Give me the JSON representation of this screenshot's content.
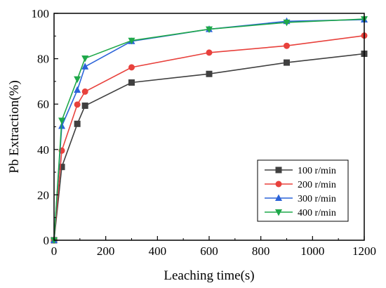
{
  "chart_data": {
    "type": "line",
    "title": "",
    "xlabel": "Leaching time(s)",
    "ylabel": "Pb Extraction(%)",
    "xlim": [
      0,
      1200
    ],
    "ylim": [
      0,
      100
    ],
    "xticks": [
      0,
      200,
      400,
      600,
      800,
      1000,
      1200
    ],
    "yticks": [
      0,
      20,
      40,
      60,
      80,
      100
    ],
    "grid": false,
    "legend_position": "bottom-right",
    "series": [
      {
        "name": "100 r/min",
        "color": "#404040",
        "marker": "square",
        "x": [
          0,
          30,
          90,
          120,
          300,
          600,
          900,
          1200
        ],
        "y": [
          0,
          32.3,
          51.3,
          59.3,
          69.5,
          73.3,
          78.3,
          82.2
        ]
      },
      {
        "name": "200 r/min",
        "color": "#e8413c",
        "marker": "circle",
        "x": [
          0,
          30,
          90,
          120,
          300,
          600,
          900,
          1200
        ],
        "y": [
          0,
          39.5,
          59.8,
          65.5,
          76.2,
          82.7,
          85.7,
          90.2
        ]
      },
      {
        "name": "300 r/min",
        "color": "#2b63d9",
        "marker": "triangle-up",
        "x": [
          0,
          30,
          90,
          120,
          300,
          600,
          900,
          1200
        ],
        "y": [
          0,
          50.3,
          66.2,
          76.5,
          87.7,
          93.0,
          96.5,
          97.2
        ]
      },
      {
        "name": "400 r/min",
        "color": "#1fa84a",
        "marker": "triangle-down",
        "x": [
          0,
          30,
          90,
          120,
          300,
          600,
          900,
          1200
        ],
        "y": [
          0,
          52.8,
          71.0,
          80.2,
          88.0,
          93.0,
          96.0,
          97.5
        ]
      }
    ]
  }
}
